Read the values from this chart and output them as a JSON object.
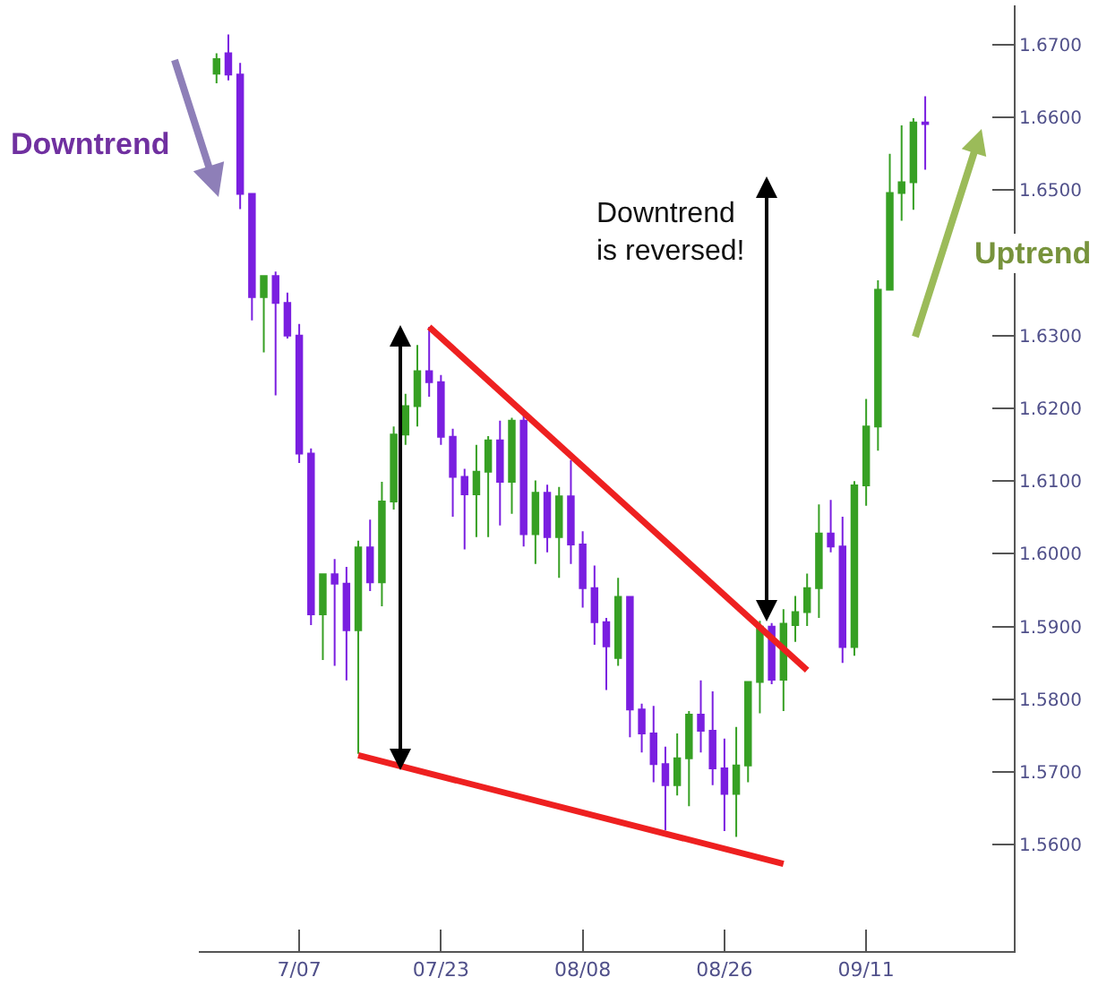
{
  "chart_data": {
    "type": "candlestick",
    "categories": [
      null,
      null,
      null,
      null,
      null,
      null,
      null,
      "7/07",
      null,
      null,
      null,
      null,
      null,
      null,
      null,
      null,
      null,
      null,
      null,
      "07/23",
      null,
      null,
      null,
      null,
      null,
      null,
      null,
      null,
      null,
      null,
      null,
      "08/08",
      null,
      null,
      null,
      null,
      null,
      null,
      null,
      null,
      null,
      null,
      null,
      "08/26",
      null,
      null,
      null,
      null,
      null,
      null,
      null,
      null,
      null,
      null,
      null,
      "09/11",
      null,
      null,
      null,
      null,
      null
    ],
    "ohlc": [
      [
        1.666,
        1.6688,
        1.6647,
        1.668
      ],
      [
        1.6688,
        1.6714,
        1.6651,
        1.6659
      ],
      [
        1.6659,
        1.6675,
        1.6474,
        1.6495
      ],
      [
        1.6495,
        1.6495,
        1.6321,
        1.6353
      ],
      [
        1.6353,
        1.6382,
        1.6277,
        1.6382
      ],
      [
        1.6382,
        1.6388,
        1.6218,
        1.6345
      ],
      [
        1.6345,
        1.6359,
        1.6296,
        1.63
      ],
      [
        1.63,
        1.6316,
        1.6125,
        1.6138
      ],
      [
        1.6138,
        1.6145,
        1.5902,
        1.5917
      ],
      [
        1.5917,
        1.5972,
        1.5854,
        1.5972
      ],
      [
        1.5972,
        1.5993,
        1.5846,
        1.5959
      ],
      [
        1.5959,
        1.5982,
        1.5826,
        1.5895
      ],
      [
        1.5895,
        1.6018,
        1.5725,
        1.6009
      ],
      [
        1.6009,
        1.6047,
        1.5949,
        1.5961
      ],
      [
        1.5961,
        1.6099,
        1.5928,
        1.6072
      ],
      [
        1.6072,
        1.6175,
        1.6061,
        1.6164
      ],
      [
        1.6164,
        1.622,
        1.615,
        1.6203
      ],
      [
        1.6203,
        1.6287,
        1.6175,
        1.6251
      ],
      [
        1.6251,
        1.6312,
        1.6216,
        1.6236
      ],
      [
        1.6236,
        1.6246,
        1.615,
        1.6161
      ],
      [
        1.6161,
        1.6172,
        1.6051,
        1.6106
      ],
      [
        1.6106,
        1.6117,
        1.6006,
        1.6082
      ],
      [
        1.6082,
        1.615,
        1.6023,
        1.6113
      ],
      [
        1.6113,
        1.6162,
        1.6023,
        1.6156
      ],
      [
        1.6156,
        1.6183,
        1.6039,
        1.6099
      ],
      [
        1.6099,
        1.6187,
        1.6055,
        1.6183
      ],
      [
        1.6183,
        1.6191,
        1.601,
        1.6027
      ],
      [
        1.6027,
        1.6101,
        1.5986,
        1.6084
      ],
      [
        1.6084,
        1.6095,
        1.6002,
        1.6023
      ],
      [
        1.6023,
        1.6092,
        1.5967,
        1.6079
      ],
      [
        1.6079,
        1.6129,
        1.5986,
        1.6013
      ],
      [
        1.6013,
        1.6031,
        1.5926,
        1.5953
      ],
      [
        1.5953,
        1.5984,
        1.5875,
        1.5906
      ],
      [
        1.5906,
        1.5912,
        1.5813,
        1.5873
      ],
      [
        1.5857,
        1.5967,
        1.5846,
        1.5941
      ],
      [
        1.5941,
        1.5942,
        1.5748,
        1.5786
      ],
      [
        1.5786,
        1.5794,
        1.5727,
        1.5753
      ],
      [
        1.5753,
        1.5791,
        1.5686,
        1.5711
      ],
      [
        1.5711,
        1.5735,
        1.562,
        1.5682
      ],
      [
        1.5682,
        1.5753,
        1.5668,
        1.5719
      ],
      [
        1.5719,
        1.5784,
        1.5653,
        1.5779
      ],
      [
        1.5779,
        1.5826,
        1.5727,
        1.5757
      ],
      [
        1.5757,
        1.5811,
        1.5682,
        1.5705
      ],
      [
        1.5705,
        1.5746,
        1.5619,
        1.567
      ],
      [
        1.567,
        1.5762,
        1.5611,
        1.5709
      ],
      [
        1.5709,
        1.5824,
        1.5686,
        1.5824
      ],
      [
        1.5824,
        1.5908,
        1.5781,
        1.59
      ],
      [
        1.59,
        1.5905,
        1.5821,
        1.5827
      ],
      [
        1.5827,
        1.5924,
        1.5784,
        1.5904
      ],
      [
        1.5902,
        1.5942,
        1.5879,
        1.592
      ],
      [
        1.592,
        1.5973,
        1.5901,
        1.5953
      ],
      [
        1.5953,
        1.6068,
        1.5912,
        1.6028
      ],
      [
        1.6028,
        1.6074,
        1.6002,
        1.601
      ],
      [
        1.601,
        1.6051,
        1.585,
        1.5872
      ],
      [
        1.5872,
        1.61,
        1.586,
        1.6094
      ],
      [
        1.6094,
        1.6213,
        1.6066,
        1.6175
      ],
      [
        1.6175,
        1.6376,
        1.6142,
        1.6363
      ],
      [
        1.6363,
        1.655,
        1.6363,
        1.6496
      ],
      [
        1.6496,
        1.6589,
        1.6458,
        1.6511
      ],
      [
        1.6511,
        1.6599,
        1.6473,
        1.6593
      ],
      [
        1.6593,
        1.6629,
        1.6528,
        1.6591
      ]
    ],
    "colors": [
      "#37a024",
      "#7a1fe0",
      "#7a1fe0",
      "#7a1fe0",
      "#37a024",
      "#7a1fe0",
      "#7a1fe0",
      "#7a1fe0",
      "#7a1fe0",
      "#37a024",
      "#7a1fe0",
      "#7a1fe0",
      "#37a024",
      "#7a1fe0",
      "#37a024",
      "#37a024",
      "#37a024",
      "#37a024",
      "#7a1fe0",
      "#7a1fe0",
      "#7a1fe0",
      "#7a1fe0",
      "#37a024",
      "#37a024",
      "#7a1fe0",
      "#37a024",
      "#7a1fe0",
      "#37a024",
      "#7a1fe0",
      "#37a024",
      "#7a1fe0",
      "#7a1fe0",
      "#7a1fe0",
      "#7a1fe0",
      "#37a024",
      "#7a1fe0",
      "#7a1fe0",
      "#7a1fe0",
      "#7a1fe0",
      "#37a024",
      "#37a024",
      "#7a1fe0",
      "#7a1fe0",
      "#7a1fe0",
      "#37a024",
      "#37a024",
      "#37a024",
      "#7a1fe0",
      "#37a024",
      "#37a024",
      "#37a024",
      "#37a024",
      "#7a1fe0",
      "#7a1fe0",
      "#37a024",
      "#37a024",
      "#37a024",
      "#37a024",
      "#37a024",
      "#37a024",
      "#7a1fe0"
    ],
    "series": [
      {
        "type": "line",
        "color": "#ee2020",
        "values": [
          null,
          null,
          null,
          null,
          null,
          null,
          null,
          null,
          null,
          null,
          null,
          null,
          null,
          null,
          null,
          null,
          null,
          null,
          1.6312,
          null,
          null,
          null,
          null,
          null,
          null,
          null,
          null,
          null,
          null,
          null,
          null,
          null,
          null,
          null,
          null,
          null,
          null,
          null,
          null,
          null,
          null,
          null,
          null,
          null,
          null,
          null,
          null,
          null,
          null,
          null,
          1.584,
          null,
          null,
          null,
          null,
          null,
          null,
          null,
          null,
          null,
          null
        ]
      },
      {
        "type": "line",
        "color": "#ee2020",
        "values": [
          null,
          null,
          null,
          null,
          null,
          null,
          null,
          null,
          null,
          null,
          null,
          null,
          1.5723,
          null,
          null,
          null,
          null,
          null,
          null,
          null,
          null,
          null,
          null,
          null,
          null,
          null,
          null,
          null,
          null,
          null,
          null,
          null,
          null,
          null,
          null,
          null,
          null,
          null,
          null,
          null,
          null,
          null,
          null,
          null,
          null,
          null,
          null,
          null,
          1.5574,
          null,
          null,
          null,
          null,
          null,
          null,
          null,
          null,
          null,
          null,
          null,
          null
        ]
      }
    ],
    "ylim": [
      1.5454,
      1.6754
    ],
    "yticks": [
      {
        "value": 1.56,
        "label": "1.5600"
      },
      {
        "value": 1.57,
        "label": "1.5700"
      },
      {
        "value": 1.58,
        "label": "1.5800"
      },
      {
        "value": 1.59,
        "label": "1.5900"
      },
      {
        "value": 1.6,
        "label": "1.6000"
      },
      {
        "value": 1.61,
        "label": "1.6100"
      },
      {
        "value": 1.62,
        "label": "1.6200"
      },
      {
        "value": 1.63,
        "label": "1.6300"
      },
      {
        "value": 1.65,
        "label": "1.6500"
      },
      {
        "value": 1.66,
        "label": "1.6600"
      },
      {
        "value": 1.67,
        "label": "1.6700"
      }
    ],
    "annotations": [
      "Downtrend",
      "Uptrend",
      "Downtrend\nis reversed!"
    ]
  }
}
